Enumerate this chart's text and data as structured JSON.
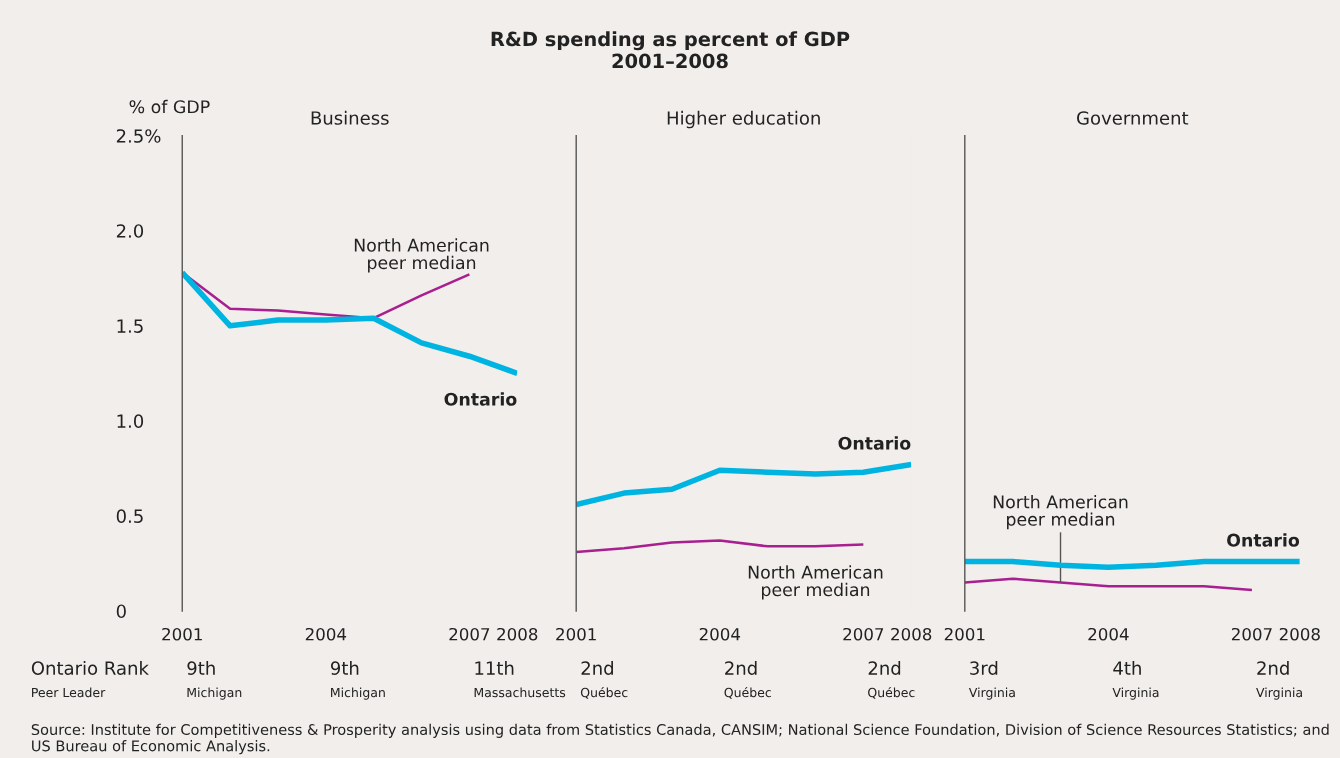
{
  "chart_data": [
    {
      "type": "line",
      "title": "Business",
      "ylabel": "% of GDP",
      "x": [
        2001,
        2002,
        2003,
        2004,
        2005,
        2006,
        2007,
        2008
      ],
      "xlim": [
        2001,
        2008
      ],
      "xticks": [
        2001,
        2004,
        2007,
        2008
      ],
      "ylim": [
        0,
        2.5
      ],
      "yticks": [
        {
          "value": 0,
          "label": "0"
        },
        {
          "value": 0.5,
          "label": "0.5"
        },
        {
          "value": 1.0,
          "label": "1.0"
        },
        {
          "value": 1.5,
          "label": "1.5"
        },
        {
          "value": 2.0,
          "label": "2.0"
        },
        {
          "value": 2.5,
          "label": "2.5%"
        }
      ],
      "grid": false,
      "legend": false,
      "series": [
        {
          "name": "North American\npeer median",
          "color": "#a8208f",
          "values": [
            1.78,
            1.59,
            1.58,
            1.56,
            1.54,
            1.66,
            1.77,
            null
          ]
        },
        {
          "name": "Ontario",
          "color": "#00b4e1",
          "values": [
            1.78,
            1.5,
            1.53,
            1.53,
            1.54,
            1.41,
            1.34,
            1.25
          ]
        }
      ],
      "annotations": [
        "R&D spending as percent of GDP\n2001–2008",
        "Ontario Rank",
        "Peer Leader",
        "9th\nMichigan",
        "9th\nMichigan",
        "11th\nMassachusetts",
        "Source: Institute for Competitiveness & Prosperity analysis using data from Statistics Canada, CANSIM; National Science Foundation, Division of Science Resources Statistics; and US Bureau of Economic Analysis."
      ]
    },
    {
      "type": "line",
      "title": "Higher education",
      "x": [
        2001,
        2002,
        2003,
        2004,
        2005,
        2006,
        2007,
        2008
      ],
      "xlim": [
        2001,
        2008
      ],
      "xticks": [
        2001,
        2004,
        2007,
        2008
      ],
      "ylim": [
        0,
        2.5
      ],
      "tick_labels": "x",
      "grid": false,
      "legend": false,
      "series": [
        {
          "name": "North American\npeer median",
          "color": "#a8208f",
          "values": [
            0.31,
            0.33,
            0.36,
            0.37,
            0.34,
            0.34,
            0.35,
            null
          ]
        },
        {
          "name": "Ontario",
          "color": "#00b4e1",
          "values": [
            0.56,
            0.62,
            0.64,
            0.74,
            0.73,
            0.72,
            0.73,
            0.77
          ]
        }
      ],
      "annotations": [
        "2nd\nQuébec",
        "2nd\nQuébec",
        "2nd\nQuébec"
      ]
    },
    {
      "type": "line",
      "title": "Government",
      "x": [
        2001,
        2002,
        2003,
        2004,
        2005,
        2006,
        2007,
        2008
      ],
      "xlim": [
        2001,
        2008
      ],
      "xticks": [
        2001,
        2004,
        2007,
        2008
      ],
      "ylim": [
        0,
        2.5
      ],
      "tick_labels": "x",
      "grid": false,
      "legend": false,
      "series": [
        {
          "name": "North American\npeer median",
          "color": "#a8208f",
          "values": [
            0.15,
            0.17,
            0.15,
            0.13,
            0.13,
            0.13,
            0.11,
            null
          ]
        },
        {
          "name": "Ontario",
          "color": "#00b4e1",
          "values": [
            0.26,
            0.26,
            0.24,
            0.23,
            0.24,
            0.26,
            0.26,
            0.26
          ]
        }
      ],
      "annotations": [
        "3rd\nVirginia",
        "4th\nVirginia",
        "2nd\nVirginia"
      ]
    }
  ]
}
